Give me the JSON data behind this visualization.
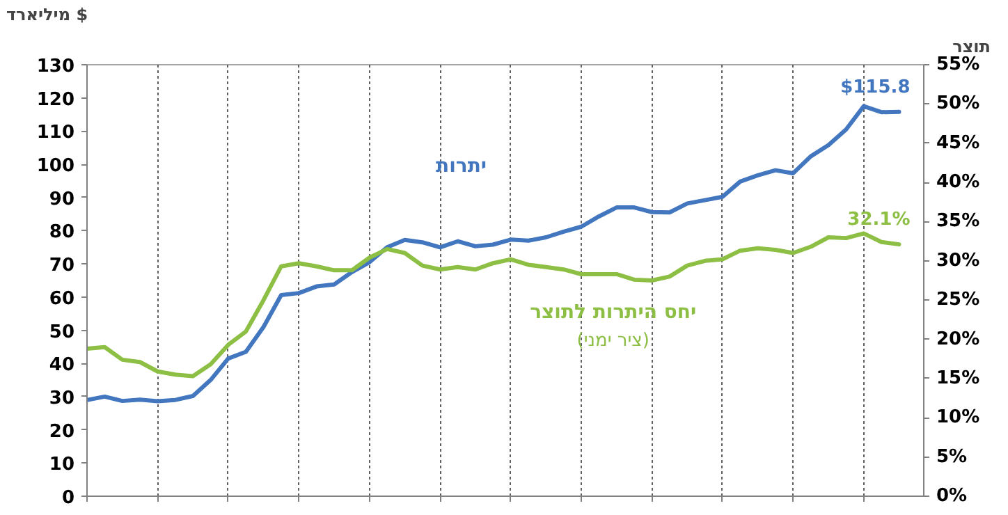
{
  "chart_data": {
    "type": "line",
    "ylabel": "מיליארד $",
    "y2label": "תוצר",
    "annotations": [
      "$115.8",
      "32.1%"
    ],
    "categories": [
      null,
      null,
      null,
      null,
      null,
      null,
      null,
      null,
      null,
      null,
      null,
      null,
      null,
      null,
      null,
      null,
      null,
      null,
      null,
      null,
      null,
      null,
      null,
      null,
      null,
      null,
      null,
      null,
      null,
      null,
      null,
      null,
      null,
      null,
      null,
      null,
      null,
      null,
      null,
      null,
      null,
      null,
      null,
      null,
      null,
      null,
      null
    ],
    "ylim": [
      0,
      130
    ],
    "yticks": [
      0,
      10,
      20,
      30,
      40,
      50,
      60,
      70,
      80,
      90,
      100,
      110,
      120,
      130
    ],
    "y2lim": [
      0,
      55
    ],
    "y2ticks": [
      {
        "value": 0,
        "label": "0%"
      },
      {
        "value": 5,
        "label": "5%"
      },
      {
        "value": 10,
        "label": "10%"
      },
      {
        "value": 15,
        "label": "15%"
      },
      {
        "value": 20,
        "label": "20%"
      },
      {
        "value": 25,
        "label": "25%"
      },
      {
        "value": 30,
        "label": "30%"
      },
      {
        "value": 35,
        "label": "35%"
      },
      {
        "value": 40,
        "label": "40%"
      },
      {
        "value": 45,
        "label": "45%"
      },
      {
        "value": 50,
        "label": "50%"
      },
      {
        "value": 55,
        "label": "55%"
      }
    ],
    "grid": "x",
    "marker": "none",
    "line_style": "solid",
    "series": [
      {
        "name": "יתרות",
        "color": "#4277c0",
        "values": [
          29,
          30,
          28.7,
          29.1,
          28.6,
          29,
          30.2,
          35,
          41.5,
          43.5,
          51,
          60.6,
          61.2,
          63.2,
          63.8,
          67.5,
          70.5,
          75,
          77.2,
          76.5,
          75,
          76.8,
          75.3,
          75.8,
          77.3,
          77,
          78,
          79.7,
          81.2,
          84.3,
          87,
          87,
          85.6,
          85.5,
          88.2,
          89.2,
          90.2,
          94.8,
          96.7,
          98.2,
          97.3,
          102.4,
          105.8,
          110.5,
          117.5,
          115.7,
          115.8
        ]
      },
      {
        "name": "יחס היתרות לתוצר (ציר ימני)",
        "color": "#8cbf44",
        "axis": "y2",
        "values": [
          18.8,
          19,
          17.4,
          17.1,
          15.9,
          15.5,
          15.3,
          16.8,
          19.3,
          21,
          25,
          29.3,
          29.7,
          29.3,
          28.8,
          28.8,
          30.4,
          31.5,
          31,
          29.4,
          28.9,
          29.2,
          28.9,
          29.7,
          30.2,
          29.5,
          29.2,
          28.9,
          28.3,
          28.3,
          28.3,
          27.6,
          27.5,
          28,
          29.4,
          30,
          30.2,
          31.3,
          31.6,
          31.4,
          31,
          31.8,
          33,
          32.9,
          33.5,
          32.4,
          32.1
        ]
      }
    ]
  }
}
